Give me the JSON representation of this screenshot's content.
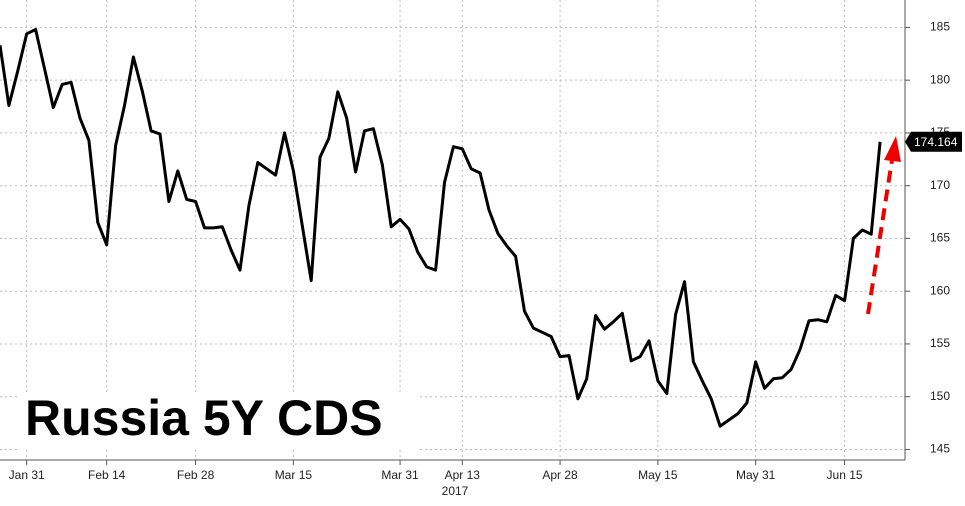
{
  "chart_data": {
    "type": "line",
    "title": "Russia 5Y CDS",
    "xlabel": "2017",
    "color": "#000000",
    "grid": true,
    "categories": [
      null,
      null,
      null,
      "Jan 31",
      null,
      null,
      null,
      null,
      null,
      null,
      null,
      null,
      "Feb 14",
      null,
      null,
      null,
      null,
      null,
      null,
      null,
      null,
      null,
      "Feb 28",
      null,
      null,
      null,
      null,
      null,
      null,
      null,
      null,
      null,
      null,
      "Mar 15",
      null,
      null,
      null,
      null,
      null,
      null,
      null,
      null,
      null,
      null,
      null,
      "Mar 31",
      null,
      null,
      null,
      null,
      null,
      null,
      "Apr 13",
      null,
      null,
      null,
      null,
      null,
      null,
      null,
      null,
      null,
      null,
      "Apr 28",
      null,
      null,
      null,
      null,
      null,
      null,
      null,
      null,
      null,
      null,
      "May 15",
      null,
      null,
      null,
      null,
      null,
      null,
      null,
      null,
      null,
      null,
      "May 31",
      null,
      null,
      null,
      null,
      null,
      null,
      null,
      null,
      null,
      "Jun 15",
      null,
      null,
      null,
      null
    ],
    "values": [
      183.3,
      177.6,
      180.9,
      184.4,
      184.8,
      181.1,
      177.4,
      179.6,
      179.8,
      176.4,
      174.3,
      166.5,
      164.4,
      173.8,
      177.6,
      182.2,
      179.0,
      175.2,
      174.9,
      168.5,
      171.4,
      168.7,
      168.5,
      166.0,
      166.0,
      166.1,
      163.9,
      162.0,
      168.1,
      172.2,
      171.6,
      171.0,
      175.0,
      171.4,
      166.2,
      161.0,
      172.7,
      174.5,
      178.9,
      176.4,
      171.3,
      175.2,
      175.4,
      172.0,
      166.1,
      166.8,
      165.9,
      163.7,
      162.3,
      162.0,
      170.3,
      173.7,
      173.5,
      171.6,
      171.2,
      167.7,
      165.5,
      164.3,
      163.3,
      158.1,
      156.5,
      156.1,
      155.7,
      153.8,
      153.9,
      149.8,
      151.7,
      157.7,
      156.4,
      157.1,
      157.9,
      153.4,
      153.8,
      155.3,
      151.5,
      150.3,
      157.8,
      160.9,
      153.3,
      151.5,
      149.8,
      147.2,
      147.8,
      148.4,
      149.4,
      153.3,
      150.8,
      151.7,
      151.8,
      152.6,
      154.5,
      157.2,
      157.3,
      157.1,
      159.6,
      159.1,
      165.0,
      165.8,
      165.4,
      174.164
    ],
    "ylim": [
      144,
      187.6
    ],
    "yticks": [
      145,
      150,
      155,
      160,
      165,
      170,
      175,
      180,
      185
    ]
  }
}
